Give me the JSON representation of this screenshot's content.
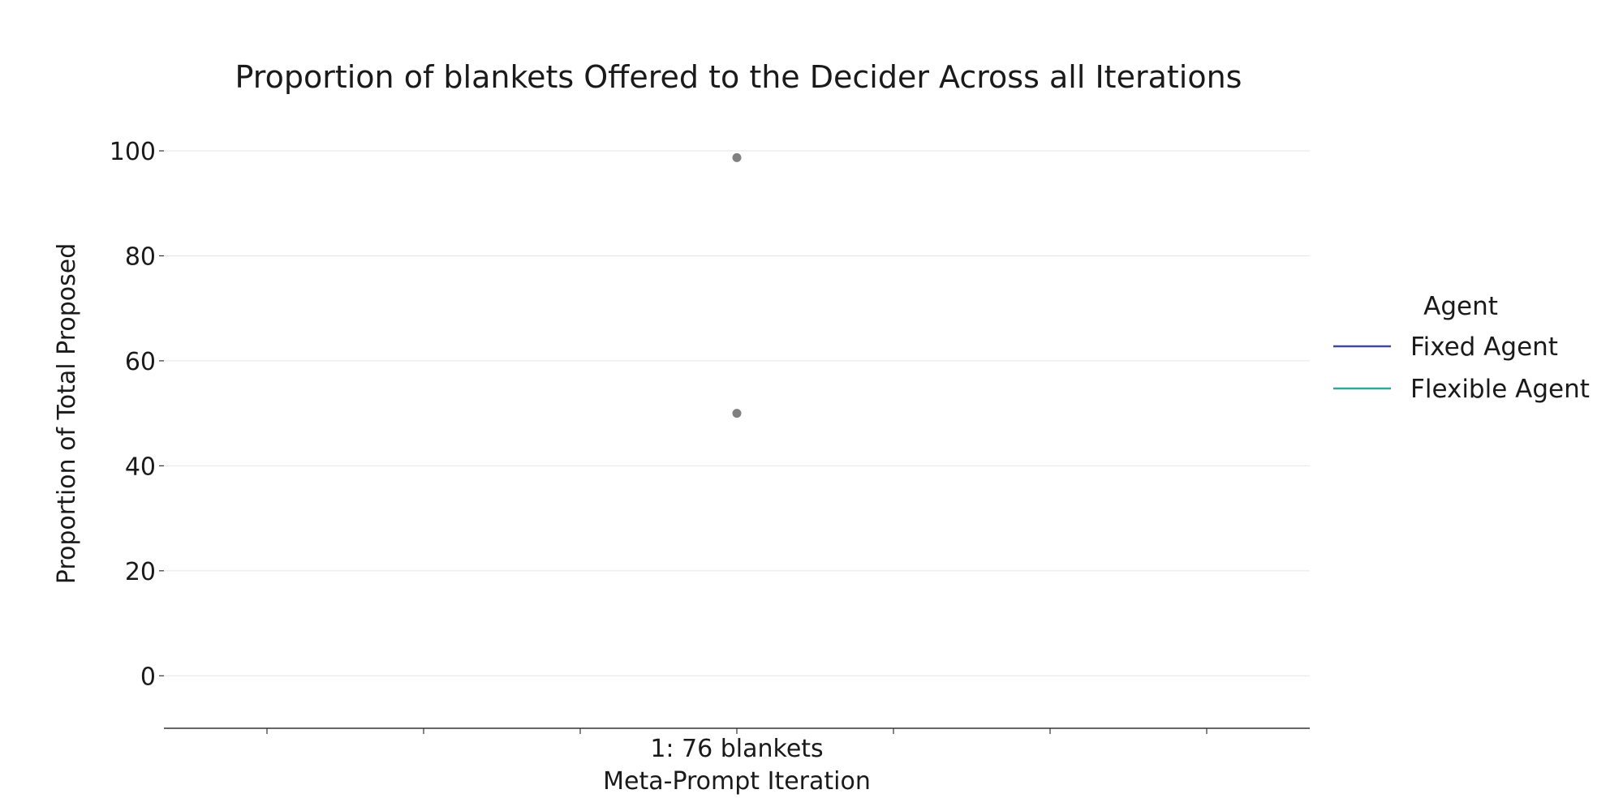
{
  "chart_data": {
    "type": "scatter",
    "title": "Proportion of blankets Offered to the Decider Across all Iterations",
    "xlabel": "Meta-Prompt Iteration",
    "ylabel": "Proportion of Total Proposed",
    "categories": [
      "1: 76 blankets"
    ],
    "ylim": [
      -10,
      100
    ],
    "yticks": [
      0,
      20,
      40,
      60,
      80,
      100
    ],
    "grid": true,
    "legend": {
      "title": "Agent",
      "placement": "right",
      "entries": [
        {
          "name": "Fixed Agent",
          "color": "#3f4a9b"
        },
        {
          "name": "Flexible Agent",
          "color": "#2aa9a0"
        }
      ]
    },
    "points": [
      {
        "category": "1: 76 blankets",
        "y": 98.7
      },
      {
        "category": "1: 76 blankets",
        "y": 50.0
      }
    ],
    "point_color": "#808080"
  }
}
